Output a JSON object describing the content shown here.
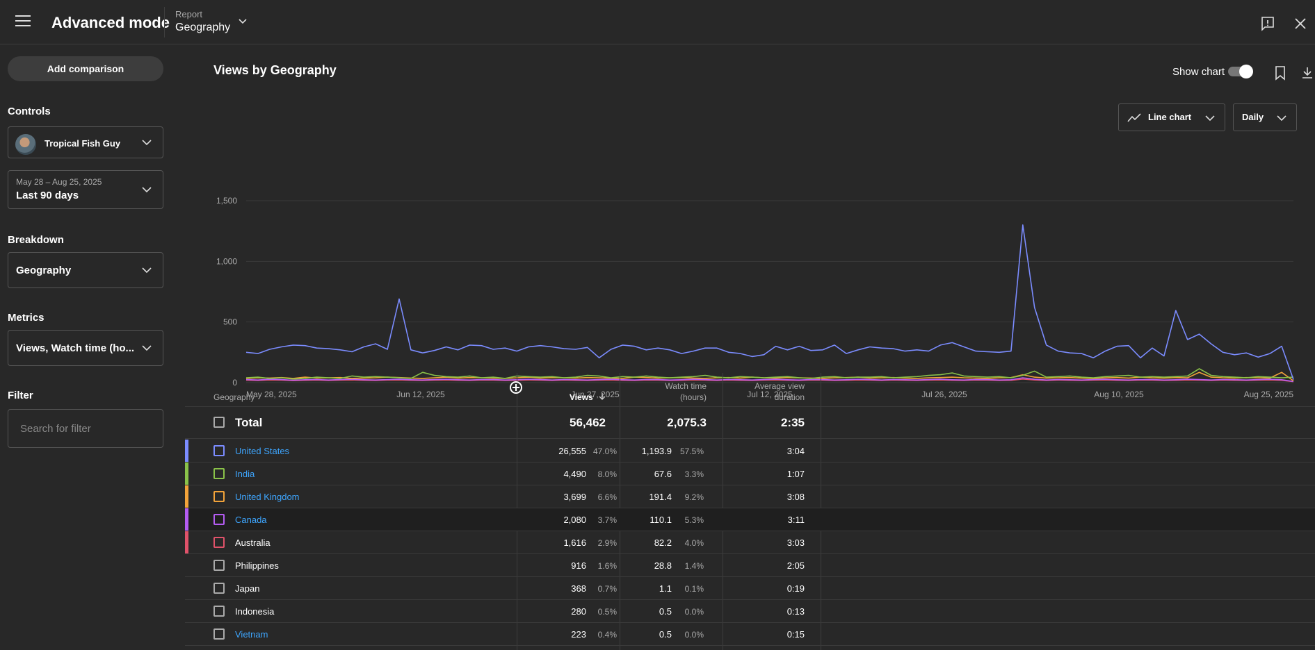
{
  "header": {
    "title": "Advanced mode",
    "report_label": "Report",
    "report_value": "Geography"
  },
  "sidebar": {
    "add_comparison": "Add comparison",
    "controls_label": "Controls",
    "channel": "Tropical Fish Guy",
    "date_range": "May 28 – Aug 25, 2025",
    "date_preset": "Last 90 days",
    "breakdown_label": "Breakdown",
    "breakdown_value": "Geography",
    "metrics_label": "Metrics",
    "metrics_value": "Views, Watch time (ho...",
    "filter_label": "Filter",
    "filter_placeholder": "Search for filter"
  },
  "main": {
    "chart_title": "Views by Geography",
    "show_chart_label": "Show chart",
    "show_chart_on": true,
    "chart_type_label": "Line chart",
    "interval_label": "Daily"
  },
  "chart_data": {
    "type": "line",
    "title": "",
    "ylim": [
      0,
      1500
    ],
    "yticks": [
      "1,500",
      "1,000",
      "500",
      "0"
    ],
    "xticks": [
      "May 28, 2025",
      "Jun 12, 2025",
      "Jun 27, 2025",
      "Jul 12, 2025",
      "Jul 26, 2025",
      "Aug 10, 2025",
      "Aug 25, 2025"
    ],
    "x_start": "May 28, 2025",
    "x_end": "Aug 25, 2025",
    "grid": true,
    "series": [
      {
        "key": "us",
        "color": "#7b8cff",
        "values": [
          250,
          240,
          275,
          295,
          310,
          305,
          285,
          280,
          270,
          255,
          295,
          320,
          275,
          690,
          270,
          245,
          265,
          295,
          270,
          310,
          305,
          275,
          285,
          260,
          295,
          305,
          295,
          280,
          275,
          290,
          205,
          275,
          310,
          300,
          270,
          285,
          270,
          240,
          260,
          285,
          285,
          250,
          240,
          215,
          230,
          300,
          270,
          300,
          265,
          270,
          310,
          240,
          270,
          295,
          285,
          280,
          260,
          270,
          260,
          310,
          330,
          295,
          260,
          255,
          250,
          260,
          1300,
          620,
          310,
          260,
          245,
          240,
          205,
          260,
          300,
          305,
          205,
          285,
          220,
          595,
          355,
          400,
          320,
          250,
          230,
          245,
          210,
          240,
          300,
          25
        ]
      },
      {
        "key": "in",
        "color": "#8ac249",
        "values": [
          40,
          45,
          35,
          40,
          30,
          35,
          45,
          40,
          35,
          55,
          45,
          50,
          45,
          40,
          35,
          85,
          60,
          50,
          45,
          55,
          40,
          45,
          35,
          55,
          50,
          45,
          50,
          40,
          45,
          60,
          55,
          40,
          50,
          45,
          55,
          45,
          40,
          45,
          50,
          60,
          45,
          40,
          50,
          45,
          40,
          45,
          50,
          40,
          35,
          45,
          50,
          40,
          45,
          45,
          50,
          40,
          45,
          50,
          60,
          65,
          80,
          55,
          50,
          45,
          50,
          40,
          60,
          95,
          45,
          50,
          55,
          45,
          40,
          50,
          55,
          60,
          45,
          50,
          45,
          50,
          55,
          115,
          60,
          50,
          45,
          40,
          50,
          45,
          40,
          45
        ]
      },
      {
        "key": "uk",
        "color": "#f2a33a",
        "values": [
          35,
          40,
          38,
          42,
          35,
          45,
          38,
          40,
          42,
          35,
          38,
          40,
          45,
          42,
          38,
          35,
          40,
          45,
          38,
          42,
          40,
          38,
          35,
          40,
          45,
          38,
          42,
          40,
          38,
          42,
          40,
          38,
          35,
          45,
          42,
          38,
          40,
          42,
          38,
          35,
          40,
          42,
          38,
          45,
          40,
          38,
          42,
          40,
          38,
          35,
          40,
          42,
          45,
          38,
          40,
          42,
          38,
          35,
          40,
          42,
          45,
          40,
          38,
          35,
          40,
          42,
          65,
          45,
          38,
          40,
          42,
          38,
          35,
          40,
          42,
          38,
          45,
          40,
          38,
          42,
          40,
          85,
          45,
          40,
          38,
          42,
          40,
          38,
          85,
          15
        ]
      },
      {
        "key": "ca",
        "color": "#b45cf2",
        "values": [
          25,
          22,
          28,
          25,
          20,
          24,
          26,
          22,
          25,
          28,
          24,
          22,
          26,
          28,
          24,
          22,
          25,
          28,
          24,
          22,
          26,
          25,
          22,
          24,
          28,
          25,
          22,
          26,
          24,
          22,
          25,
          28,
          24,
          22,
          26,
          25,
          22,
          24,
          28,
          25,
          22,
          26,
          24,
          22,
          25,
          28,
          24,
          22,
          26,
          25,
          22,
          24,
          28,
          25,
          22,
          26,
          24,
          22,
          25,
          28,
          24,
          22,
          26,
          25,
          22,
          24,
          40,
          28,
          22,
          26,
          24,
          22,
          25,
          28,
          24,
          22,
          26,
          25,
          22,
          24,
          28,
          25,
          22,
          26,
          24,
          22,
          25,
          28,
          24,
          10
        ]
      },
      {
        "key": "au",
        "color": "#e0526a",
        "values": [
          20,
          18,
          22,
          20,
          16,
          19,
          21,
          18,
          20,
          22,
          19,
          18,
          21,
          22,
          19,
          18,
          20,
          22,
          19,
          18,
          21,
          20,
          18,
          19,
          22,
          20,
          18,
          21,
          19,
          18,
          20,
          22,
          19,
          18,
          21,
          20,
          18,
          19,
          22,
          20,
          18,
          21,
          19,
          18,
          20,
          22,
          19,
          18,
          21,
          20,
          18,
          19,
          22,
          20,
          18,
          21,
          19,
          18,
          20,
          22,
          19,
          18,
          21,
          20,
          18,
          19,
          30,
          22,
          18,
          21,
          19,
          18,
          20,
          22,
          19,
          18,
          21,
          20,
          18,
          19,
          22,
          20,
          18,
          21,
          19,
          18,
          20,
          22,
          19,
          8
        ]
      }
    ]
  },
  "table": {
    "col_geography": "Geography",
    "col_views": "Views",
    "col_watch": [
      "Watch time",
      "(hours)"
    ],
    "col_avg": [
      "Average view",
      "duration"
    ],
    "total": {
      "label": "Total",
      "views": "56,462",
      "watch": "2,075.3",
      "avg": "2:35"
    },
    "rows": [
      {
        "name": "United States",
        "link": true,
        "color": "#7b8cff",
        "views": "26,555",
        "views_pct": "47.0%",
        "watch": "1,193.9",
        "watch_pct": "57.5%",
        "avg": "3:04"
      },
      {
        "name": "India",
        "link": true,
        "color": "#8ac249",
        "views": "4,490",
        "views_pct": "8.0%",
        "watch": "67.6",
        "watch_pct": "3.3%",
        "avg": "1:07"
      },
      {
        "name": "United Kingdom",
        "link": true,
        "color": "#f2a33a",
        "views": "3,699",
        "views_pct": "6.6%",
        "watch": "191.4",
        "watch_pct": "9.2%",
        "avg": "3:08"
      },
      {
        "name": "Canada",
        "link": true,
        "color": "#b45cf2",
        "views": "2,080",
        "views_pct": "3.7%",
        "watch": "110.1",
        "watch_pct": "5.3%",
        "avg": "3:11"
      },
      {
        "name": "Australia",
        "link": false,
        "color": "#e0526a",
        "views": "1,616",
        "views_pct": "2.9%",
        "watch": "82.2",
        "watch_pct": "4.0%",
        "avg": "3:03"
      },
      {
        "name": "Philippines",
        "link": false,
        "color": "",
        "views": "916",
        "views_pct": "1.6%",
        "watch": "28.8",
        "watch_pct": "1.4%",
        "avg": "2:05"
      },
      {
        "name": "Japan",
        "link": false,
        "color": "",
        "views": "368",
        "views_pct": "0.7%",
        "watch": "1.1",
        "watch_pct": "0.1%",
        "avg": "0:19"
      },
      {
        "name": "Indonesia",
        "link": false,
        "color": "",
        "views": "280",
        "views_pct": "0.5%",
        "watch": "0.5",
        "watch_pct": "0.0%",
        "avg": "0:13"
      },
      {
        "name": "Vietnam",
        "link": true,
        "color": "",
        "views": "223",
        "views_pct": "0.4%",
        "watch": "0.5",
        "watch_pct": "0.0%",
        "avg": "0:15"
      }
    ]
  }
}
